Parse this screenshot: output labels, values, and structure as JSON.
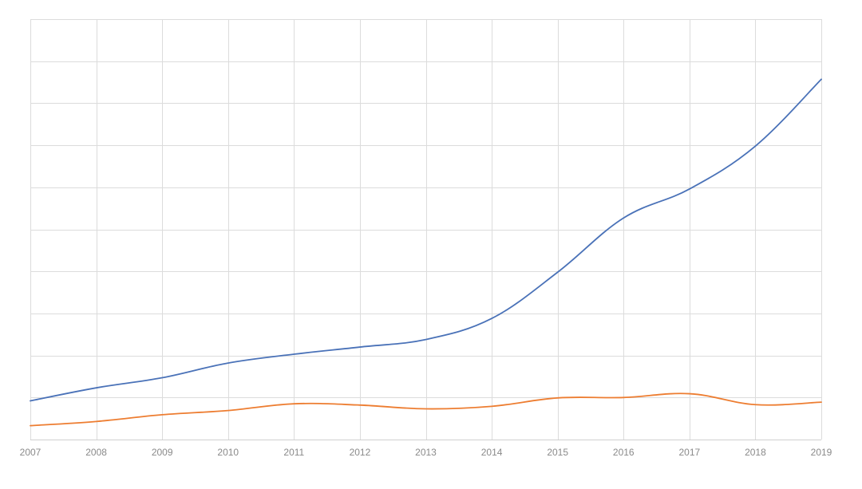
{
  "chart_data": {
    "type": "line",
    "title": "",
    "xlabel": "",
    "ylabel": "",
    "x": [
      "2007",
      "2008",
      "2009",
      "2010",
      "2011",
      "2012",
      "2013",
      "2014",
      "2015",
      "2016",
      "2017",
      "2018",
      "2019"
    ],
    "ylim": [
      0,
      10
    ],
    "y_gridlines": 10,
    "grid": true,
    "legend": "none",
    "series": [
      {
        "color": "#4a72b8",
        "values": [
          0.92,
          1.23,
          1.47,
          1.82,
          2.03,
          2.2,
          2.38,
          2.88,
          3.98,
          5.27,
          5.96,
          6.98,
          8.57
        ]
      },
      {
        "color": "#ed7d31",
        "values": [
          0.33,
          0.43,
          0.59,
          0.69,
          0.85,
          0.82,
          0.73,
          0.79,
          0.99,
          1.0,
          1.09,
          0.83,
          0.89
        ]
      }
    ]
  }
}
